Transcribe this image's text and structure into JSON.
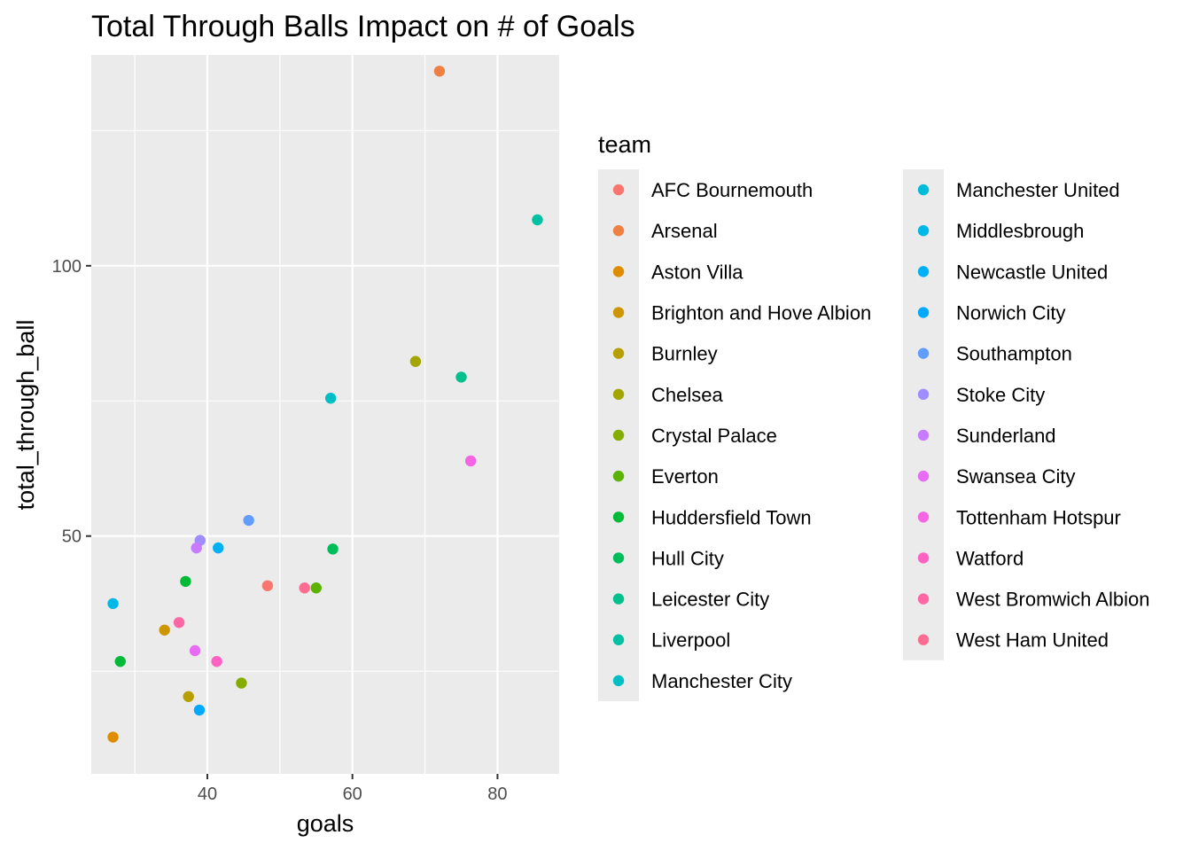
{
  "chart_data": {
    "type": "scatter",
    "title": "Total Through Balls Impact on # of Goals",
    "xlabel": "goals",
    "ylabel": "total_through_ball",
    "xlim": [
      24,
      88.5
    ],
    "ylim": [
      6,
      139
    ],
    "x_ticks": [
      40,
      60,
      80
    ],
    "y_ticks": [
      50,
      100
    ],
    "grid": true,
    "legend": {
      "title": "team",
      "placement": "right",
      "columns": 2,
      "entries": [
        {
          "name": "AFC Bournemouth",
          "color": "#F8766D"
        },
        {
          "name": "Arsenal",
          "color": "#EE8044"
        },
        {
          "name": "Aston Villa",
          "color": "#DE8C00"
        },
        {
          "name": "Brighton and Hove Albion",
          "color": "#CD9600"
        },
        {
          "name": "Burnley",
          "color": "#B79F00"
        },
        {
          "name": "Chelsea",
          "color": "#A3A500"
        },
        {
          "name": "Crystal Palace",
          "color": "#85AD00"
        },
        {
          "name": "Everton",
          "color": "#5BB300"
        },
        {
          "name": "Huddersfield Town",
          "color": "#00BA38"
        },
        {
          "name": "Hull City",
          "color": "#00BD5C"
        },
        {
          "name": "Leicester City",
          "color": "#00C08B"
        },
        {
          "name": "Liverpool",
          "color": "#00C1A3"
        },
        {
          "name": "Manchester City",
          "color": "#00BFC4"
        },
        {
          "name": "Manchester United",
          "color": "#00BBDA"
        },
        {
          "name": "Middlesbrough",
          "color": "#00B8E7"
        },
        {
          "name": "Newcastle United",
          "color": "#00B0F6"
        },
        {
          "name": "Norwich City",
          "color": "#00A9FF"
        },
        {
          "name": "Southampton",
          "color": "#619CFF"
        },
        {
          "name": "Stoke City",
          "color": "#9F8CFF"
        },
        {
          "name": "Sunderland",
          "color": "#C77CFF"
        },
        {
          "name": "Swansea City",
          "color": "#E76BF3"
        },
        {
          "name": "Tottenham Hotspur",
          "color": "#F564E3"
        },
        {
          "name": "Watford",
          "color": "#FF61C3"
        },
        {
          "name": "West Bromwich Albion",
          "color": "#FF67A4"
        },
        {
          "name": "West Ham United",
          "color": "#FF6C91"
        }
      ]
    },
    "points": [
      {
        "x": 72,
        "y": 136,
        "color": "#EE8044"
      },
      {
        "x": 85.5,
        "y": 108.5,
        "color": "#00C1A3"
      },
      {
        "x": 68.7,
        "y": 82.3,
        "color": "#A3A500"
      },
      {
        "x": 75,
        "y": 79.4,
        "color": "#00C08B"
      },
      {
        "x": 57,
        "y": 75.5,
        "color": "#00BFC4"
      },
      {
        "x": 76.3,
        "y": 63.9,
        "color": "#F564E3"
      },
      {
        "x": 45.7,
        "y": 52.9,
        "color": "#619CFF"
      },
      {
        "x": 39,
        "y": 49.2,
        "color": "#9F8CFF"
      },
      {
        "x": 38.5,
        "y": 47.8,
        "color": "#C77CFF"
      },
      {
        "x": 41.5,
        "y": 47.8,
        "color": "#00B0F6"
      },
      {
        "x": 57.3,
        "y": 47.6,
        "color": "#00BD5C"
      },
      {
        "x": 37,
        "y": 41.6,
        "color": "#00BA38"
      },
      {
        "x": 48.3,
        "y": 40.8,
        "color": "#F8766D"
      },
      {
        "x": 53.4,
        "y": 40.4,
        "color": "#FF6C91"
      },
      {
        "x": 55,
        "y": 40.4,
        "color": "#5BB300"
      },
      {
        "x": 27,
        "y": 37.5,
        "color": "#00B8E7"
      },
      {
        "x": 36.1,
        "y": 34,
        "color": "#FF67A4"
      },
      {
        "x": 34.1,
        "y": 32.6,
        "color": "#CD9600"
      },
      {
        "x": 38.3,
        "y": 28.8,
        "color": "#E76BF3"
      },
      {
        "x": 28,
        "y": 26.8,
        "color": "#00BA38"
      },
      {
        "x": 41.3,
        "y": 26.8,
        "color": "#FF61C3"
      },
      {
        "x": 44.7,
        "y": 22.8,
        "color": "#85AD00"
      },
      {
        "x": 37.4,
        "y": 20.3,
        "color": "#B79F00"
      },
      {
        "x": 38.9,
        "y": 17.8,
        "color": "#00A9FF"
      },
      {
        "x": 27,
        "y": 12.8,
        "color": "#DE8C00"
      }
    ]
  }
}
